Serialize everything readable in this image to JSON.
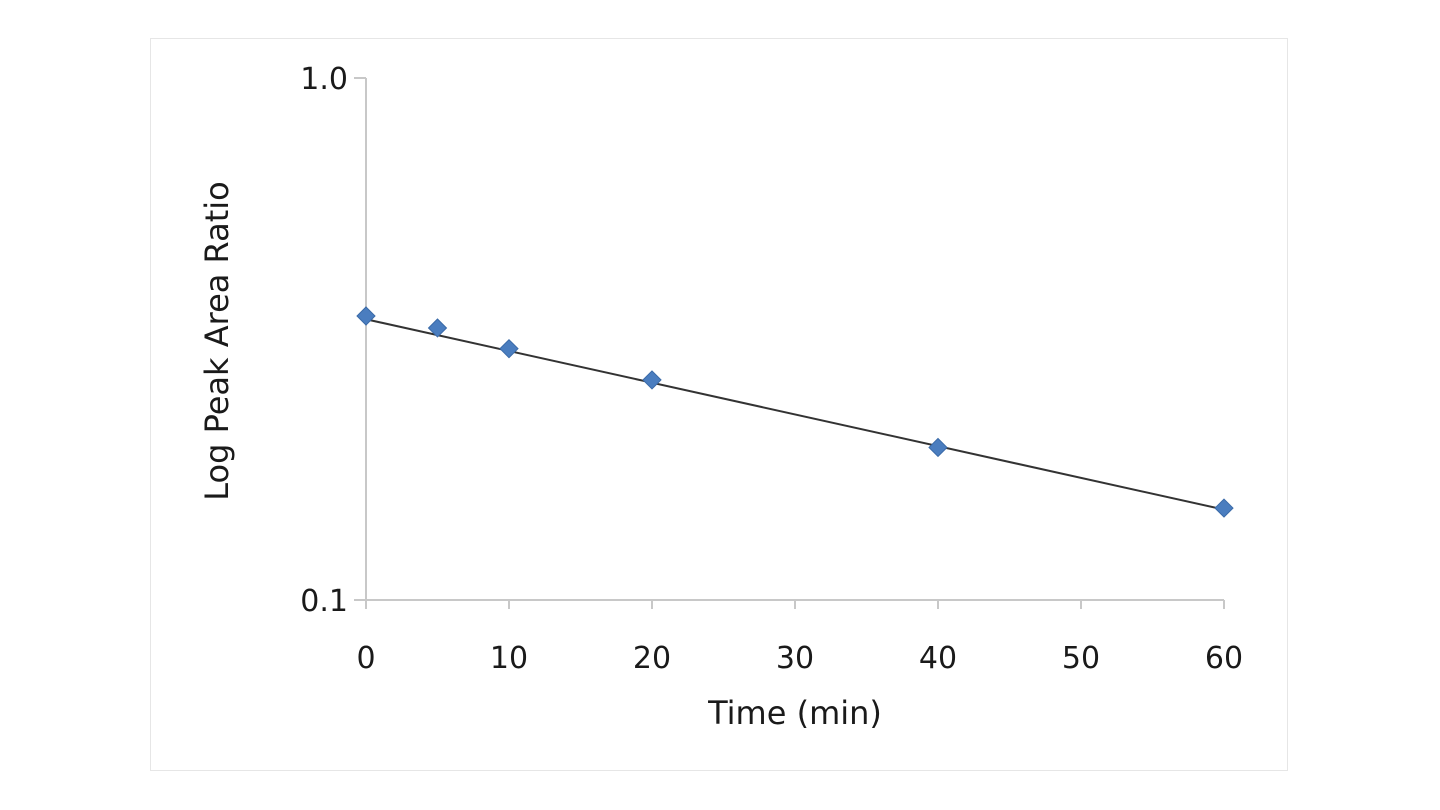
{
  "chart_data": {
    "type": "scatter",
    "title": "",
    "xlabel": "Time (min)",
    "ylabel": "Log Peak Area Ratio",
    "xlim": [
      0,
      60
    ],
    "ylim": [
      0.1,
      1.0
    ],
    "y_scale": "log",
    "x_ticks": [
      0,
      10,
      20,
      30,
      40,
      50,
      60
    ],
    "x_tick_labels": [
      "0",
      "10",
      "20",
      "30",
      "40",
      "50",
      "60"
    ],
    "y_ticks": [
      0.1,
      1.0
    ],
    "y_tick_labels": [
      "0.1",
      "1.0"
    ],
    "grid": false,
    "legend": "none",
    "series": [
      {
        "marker": "diamond",
        "color": "#4a7dbf",
        "x": [
          0,
          5,
          10,
          20,
          40,
          60
        ],
        "y": [
          0.35,
          0.332,
          0.303,
          0.264,
          0.196,
          0.15
        ]
      }
    ],
    "trendline": {
      "type": "exponential",
      "color": "#333333",
      "x": [
        0,
        60
      ],
      "y": [
        0.345,
        0.149
      ]
    }
  }
}
